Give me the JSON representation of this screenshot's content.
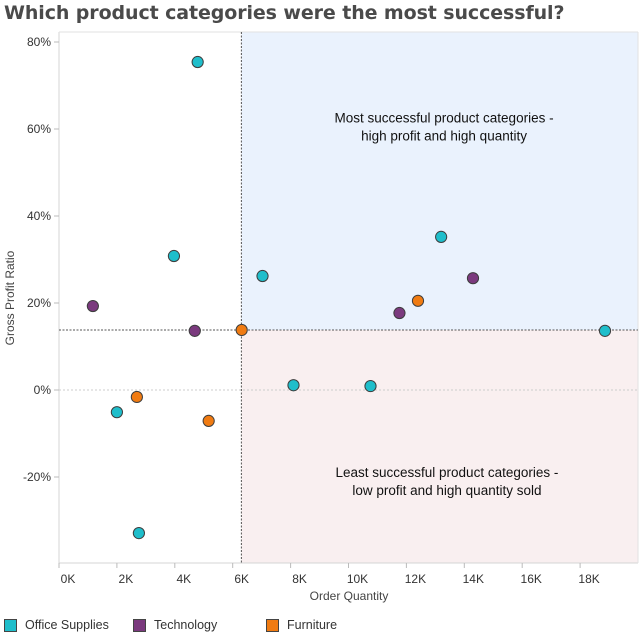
{
  "chart_data": {
    "type": "scatter",
    "title": "Which product categories were the most successful?",
    "xlabel": "Order Quantity",
    "ylabel": "Gross Profit Ratio",
    "xlim": [
      0,
      20000
    ],
    "ylim": [
      -0.4,
      0.82
    ],
    "x_ticks": [
      {
        "value": 0,
        "label": "0K"
      },
      {
        "value": 2000,
        "label": "2K"
      },
      {
        "value": 4000,
        "label": "4K"
      },
      {
        "value": 6000,
        "label": "6K"
      },
      {
        "value": 8000,
        "label": "8K"
      },
      {
        "value": 10000,
        "label": "10K"
      },
      {
        "value": 12000,
        "label": "12K"
      },
      {
        "value": 14000,
        "label": "14K"
      },
      {
        "value": 16000,
        "label": "16K"
      },
      {
        "value": 18000,
        "label": "18K"
      }
    ],
    "y_ticks": [
      {
        "value": 0.8,
        "label": "80%"
      },
      {
        "value": 0.6,
        "label": "60%"
      },
      {
        "value": 0.4,
        "label": "40%"
      },
      {
        "value": 0.2,
        "label": "20%"
      },
      {
        "value": 0.0,
        "label": "0%"
      },
      {
        "value": -0.2,
        "label": "-20%"
      }
    ],
    "reference_lines": {
      "x": 6300,
      "y": 0.138
    },
    "quadrants": [
      {
        "name": "upper-right",
        "color": "#eaf2fd",
        "label_lines": [
          "Most successful product categories -",
          "high profit and high quantity"
        ],
        "label_pos": {
          "x": 13300,
          "y": 0.615
        }
      },
      {
        "name": "lower-right",
        "color": "#f9eff0",
        "label_lines": [
          "Least successful product categories -",
          "low profit and high quantity sold"
        ],
        "label_pos": {
          "x": 13400,
          "y": -0.2
        }
      }
    ],
    "legend_position": "bottom",
    "series": [
      {
        "name": "Office Supplies",
        "color": "#1fbecb",
        "points": [
          {
            "x": 4790,
            "y": 0.754
          },
          {
            "x": 3970,
            "y": 0.308
          },
          {
            "x": 7030,
            "y": 0.262
          },
          {
            "x": 2000,
            "y": -0.051
          },
          {
            "x": 2760,
            "y": -0.329
          },
          {
            "x": 8100,
            "y": 0.011
          },
          {
            "x": 10760,
            "y": 0.009
          },
          {
            "x": 13200,
            "y": 0.352
          },
          {
            "x": 18860,
            "y": 0.136
          }
        ]
      },
      {
        "name": "Technology",
        "color": "#7b3a7e",
        "points": [
          {
            "x": 1170,
            "y": 0.193
          },
          {
            "x": 4690,
            "y": 0.136
          },
          {
            "x": 11760,
            "y": 0.177
          },
          {
            "x": 14300,
            "y": 0.257
          }
        ]
      },
      {
        "name": "Furniture",
        "color": "#f07b12",
        "points": [
          {
            "x": 6310,
            "y": 0.138
          },
          {
            "x": 2690,
            "y": -0.016
          },
          {
            "x": 5170,
            "y": -0.071
          },
          {
            "x": 12400,
            "y": 0.205
          }
        ]
      }
    ]
  }
}
